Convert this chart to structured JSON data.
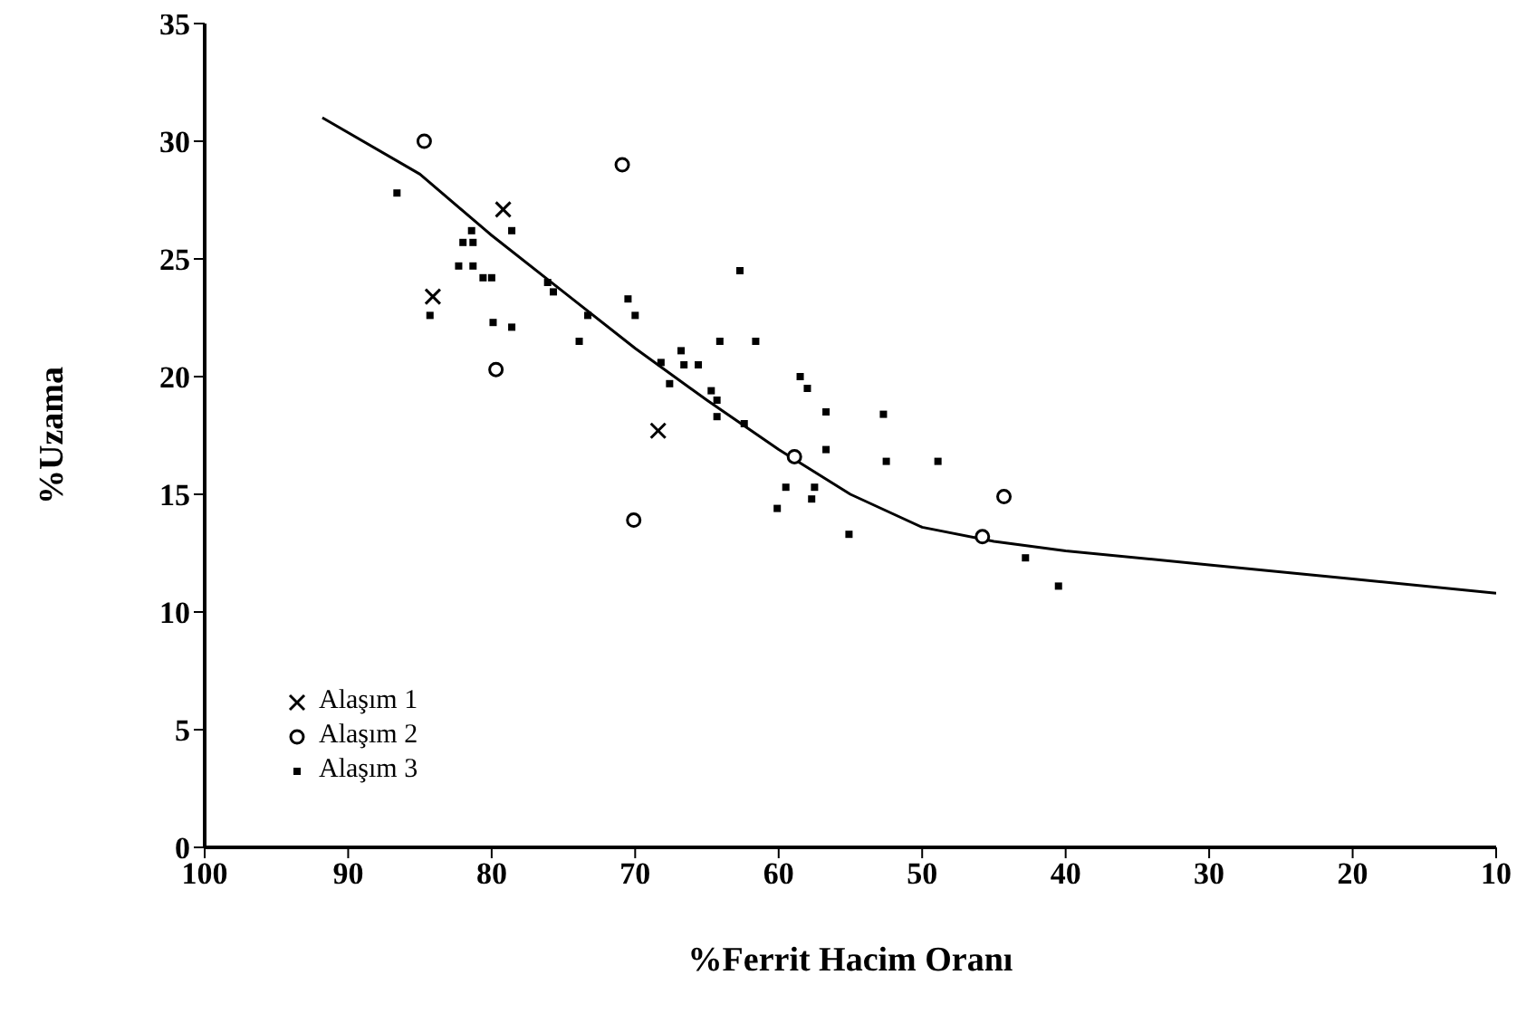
{
  "chart_data": {
    "type": "scatter",
    "xlabel": "%Ferrit Hacim Oranı",
    "ylabel": "%Uzama",
    "xlim": [
      100,
      10
    ],
    "xticks": [
      100,
      90,
      80,
      70,
      60,
      50,
      40,
      30,
      20,
      10
    ],
    "ylim": [
      0,
      35
    ],
    "yticks": [
      0,
      5,
      10,
      15,
      20,
      25,
      30,
      35
    ],
    "legend": "bottom left",
    "series": [
      {
        "name": "Alaşım 1",
        "color": "#000000",
        "marker": "cross",
        "x": [
          79.2,
          84.1,
          68.4
        ],
        "values": [
          27.1,
          23.4,
          17.7
        ]
      },
      {
        "name": "Alaşım 2",
        "color": "#000000",
        "marker": "circle",
        "x": [
          84.7,
          70.9,
          79.7,
          58.9,
          70.1,
          44.3,
          45.8
        ],
        "values": [
          30.0,
          29.0,
          20.3,
          16.6,
          13.9,
          14.9,
          13.2
        ]
      },
      {
        "name": "Alaşım 3",
        "color": "#000000",
        "marker": "square",
        "x": [
          86.6,
          60.1,
          81.4,
          82.0,
          81.3,
          82.3,
          81.3,
          80.6,
          80.0,
          78.6,
          84.3,
          79.9,
          78.6,
          73.9,
          76.1,
          75.7,
          73.3,
          70.5,
          70.0,
          62.7,
          64.1,
          61.6,
          66.8,
          68.2,
          66.6,
          65.6,
          67.6,
          64.7,
          64.3,
          64.3,
          62.4,
          58.5,
          58.0,
          56.7,
          52.7,
          56.7,
          52.5,
          48.9,
          59.5,
          57.5,
          57.7,
          55.1,
          42.8,
          40.5
        ],
        "values": [
          27.8,
          14.4,
          26.2,
          25.7,
          25.7,
          24.7,
          24.7,
          24.2,
          24.2,
          26.2,
          22.6,
          22.3,
          22.1,
          21.5,
          24.0,
          23.6,
          22.6,
          23.3,
          22.6,
          24.5,
          21.5,
          21.5,
          21.1,
          20.6,
          20.5,
          20.5,
          19.7,
          19.4,
          19.0,
          18.3,
          18.0,
          20.0,
          19.5,
          18.5,
          18.4,
          16.9,
          16.4,
          16.4,
          15.3,
          15.3,
          14.8,
          13.3,
          12.3,
          11.1
        ]
      },
      {
        "type": "line",
        "color": "#000000",
        "marker": "none",
        "x": [
          91.8,
          85,
          80,
          75,
          70,
          65,
          60,
          55,
          50,
          45,
          40,
          30,
          20,
          10
        ],
        "values": [
          31.0,
          28.6,
          26.0,
          23.6,
          21.2,
          19.0,
          16.9,
          15.0,
          13.6,
          13.0,
          12.6,
          12.0,
          11.4,
          10.8
        ]
      }
    ]
  }
}
